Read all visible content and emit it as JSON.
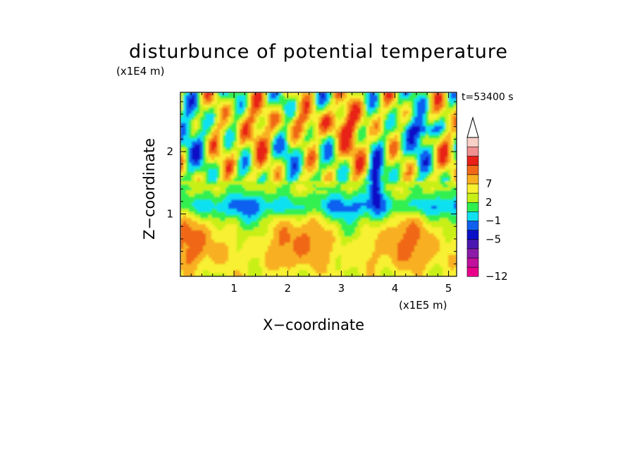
{
  "chart_data": {
    "type": "heatmap",
    "title": "disturbunce of potential temperature",
    "xlabel": "X−coordinate",
    "ylabel": "Z−coordinate",
    "x_unit": "(x1E5 m)",
    "y_unit": "(x1E4 m)",
    "time_label": "t=53400 s",
    "xlim": [
      0,
      5.15
    ],
    "ylim": [
      0,
      2.95
    ],
    "x_ticks": [
      1,
      2,
      3,
      4,
      5
    ],
    "y_ticks": [
      1,
      2
    ],
    "colorbar": {
      "extend": "max",
      "labels": [
        {
          "value": 7,
          "text": "7"
        },
        {
          "value": 2,
          "text": "2"
        },
        {
          "value": -1,
          "text": "−1"
        },
        {
          "value": -5,
          "text": "−5"
        },
        {
          "value": -12,
          "text": "−12"
        }
      ],
      "colors": [
        "#e8008a",
        "#c0109c",
        "#8c1ca8",
        "#4a18b0",
        "#0a10c8",
        "#1060f0",
        "#10e0f0",
        "#30f050",
        "#c8f018",
        "#f8f030",
        "#f8b020",
        "#f06818",
        "#e82018",
        "#f09090",
        "#f8d0c8"
      ],
      "top_arrow_color": "#ffffff"
    }
  }
}
